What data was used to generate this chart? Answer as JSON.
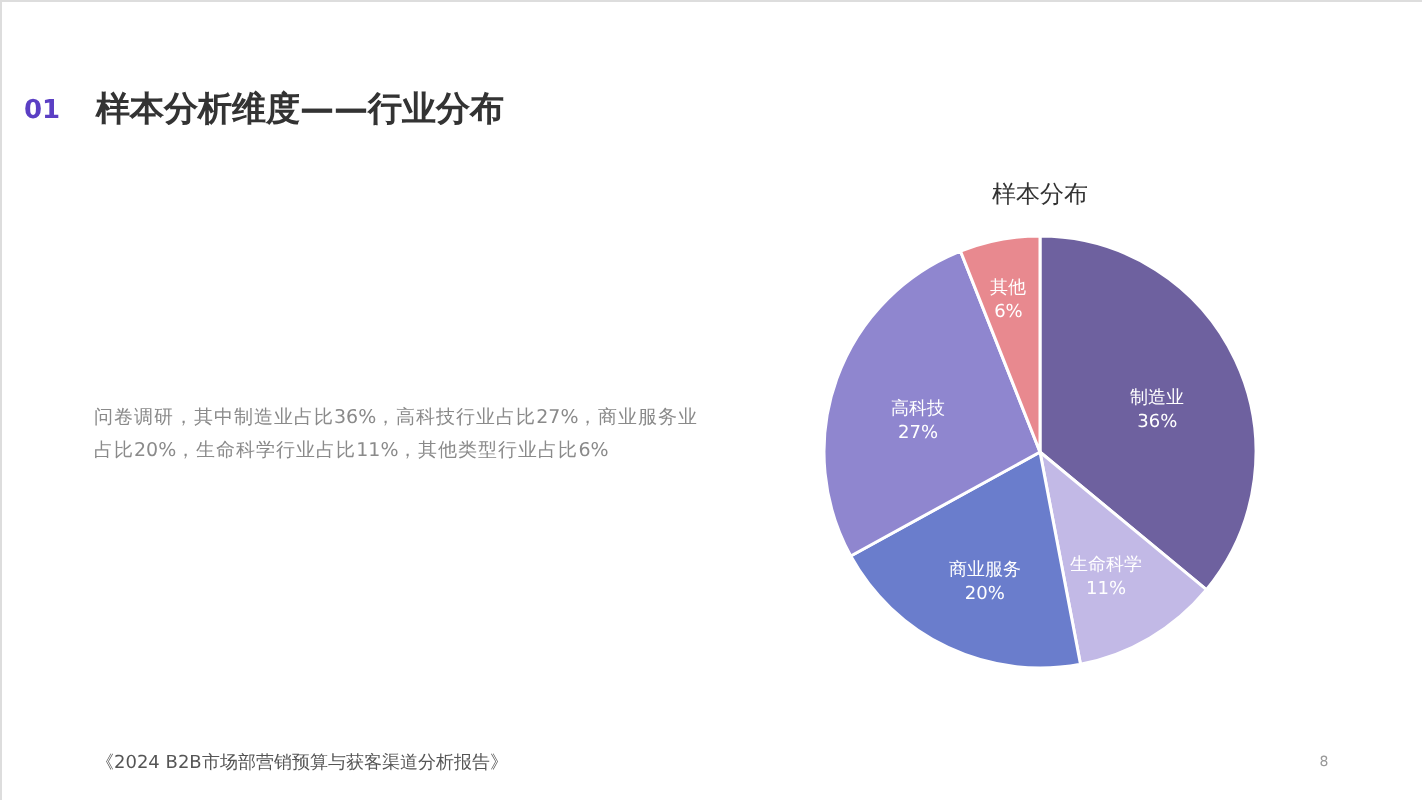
{
  "chart_data": {
    "type": "pie",
    "title": "样本分布",
    "categories": [
      "制造业",
      "生命科学",
      "商业服务",
      "高科技",
      "其他"
    ],
    "values": [
      36,
      11,
      20,
      27,
      6
    ],
    "value_labels": [
      "36%",
      "11%",
      "20%",
      "27%",
      "6%"
    ],
    "colors": [
      "#6e619f",
      "#c2b9e6",
      "#6a7dcc",
      "#8f86cf",
      "#e8898f"
    ],
    "annotations": [
      "01",
      "样本分析维度——行业分布",
      "问卷调研，其中制造业占比36%，高科技行业占比27%，商业服务业占比20%，生命科学行业占比11%，其他类型行业占比6%",
      "《2024 B2B市场部营销预算与获客渠道分析报告》",
      "8"
    ]
  }
}
